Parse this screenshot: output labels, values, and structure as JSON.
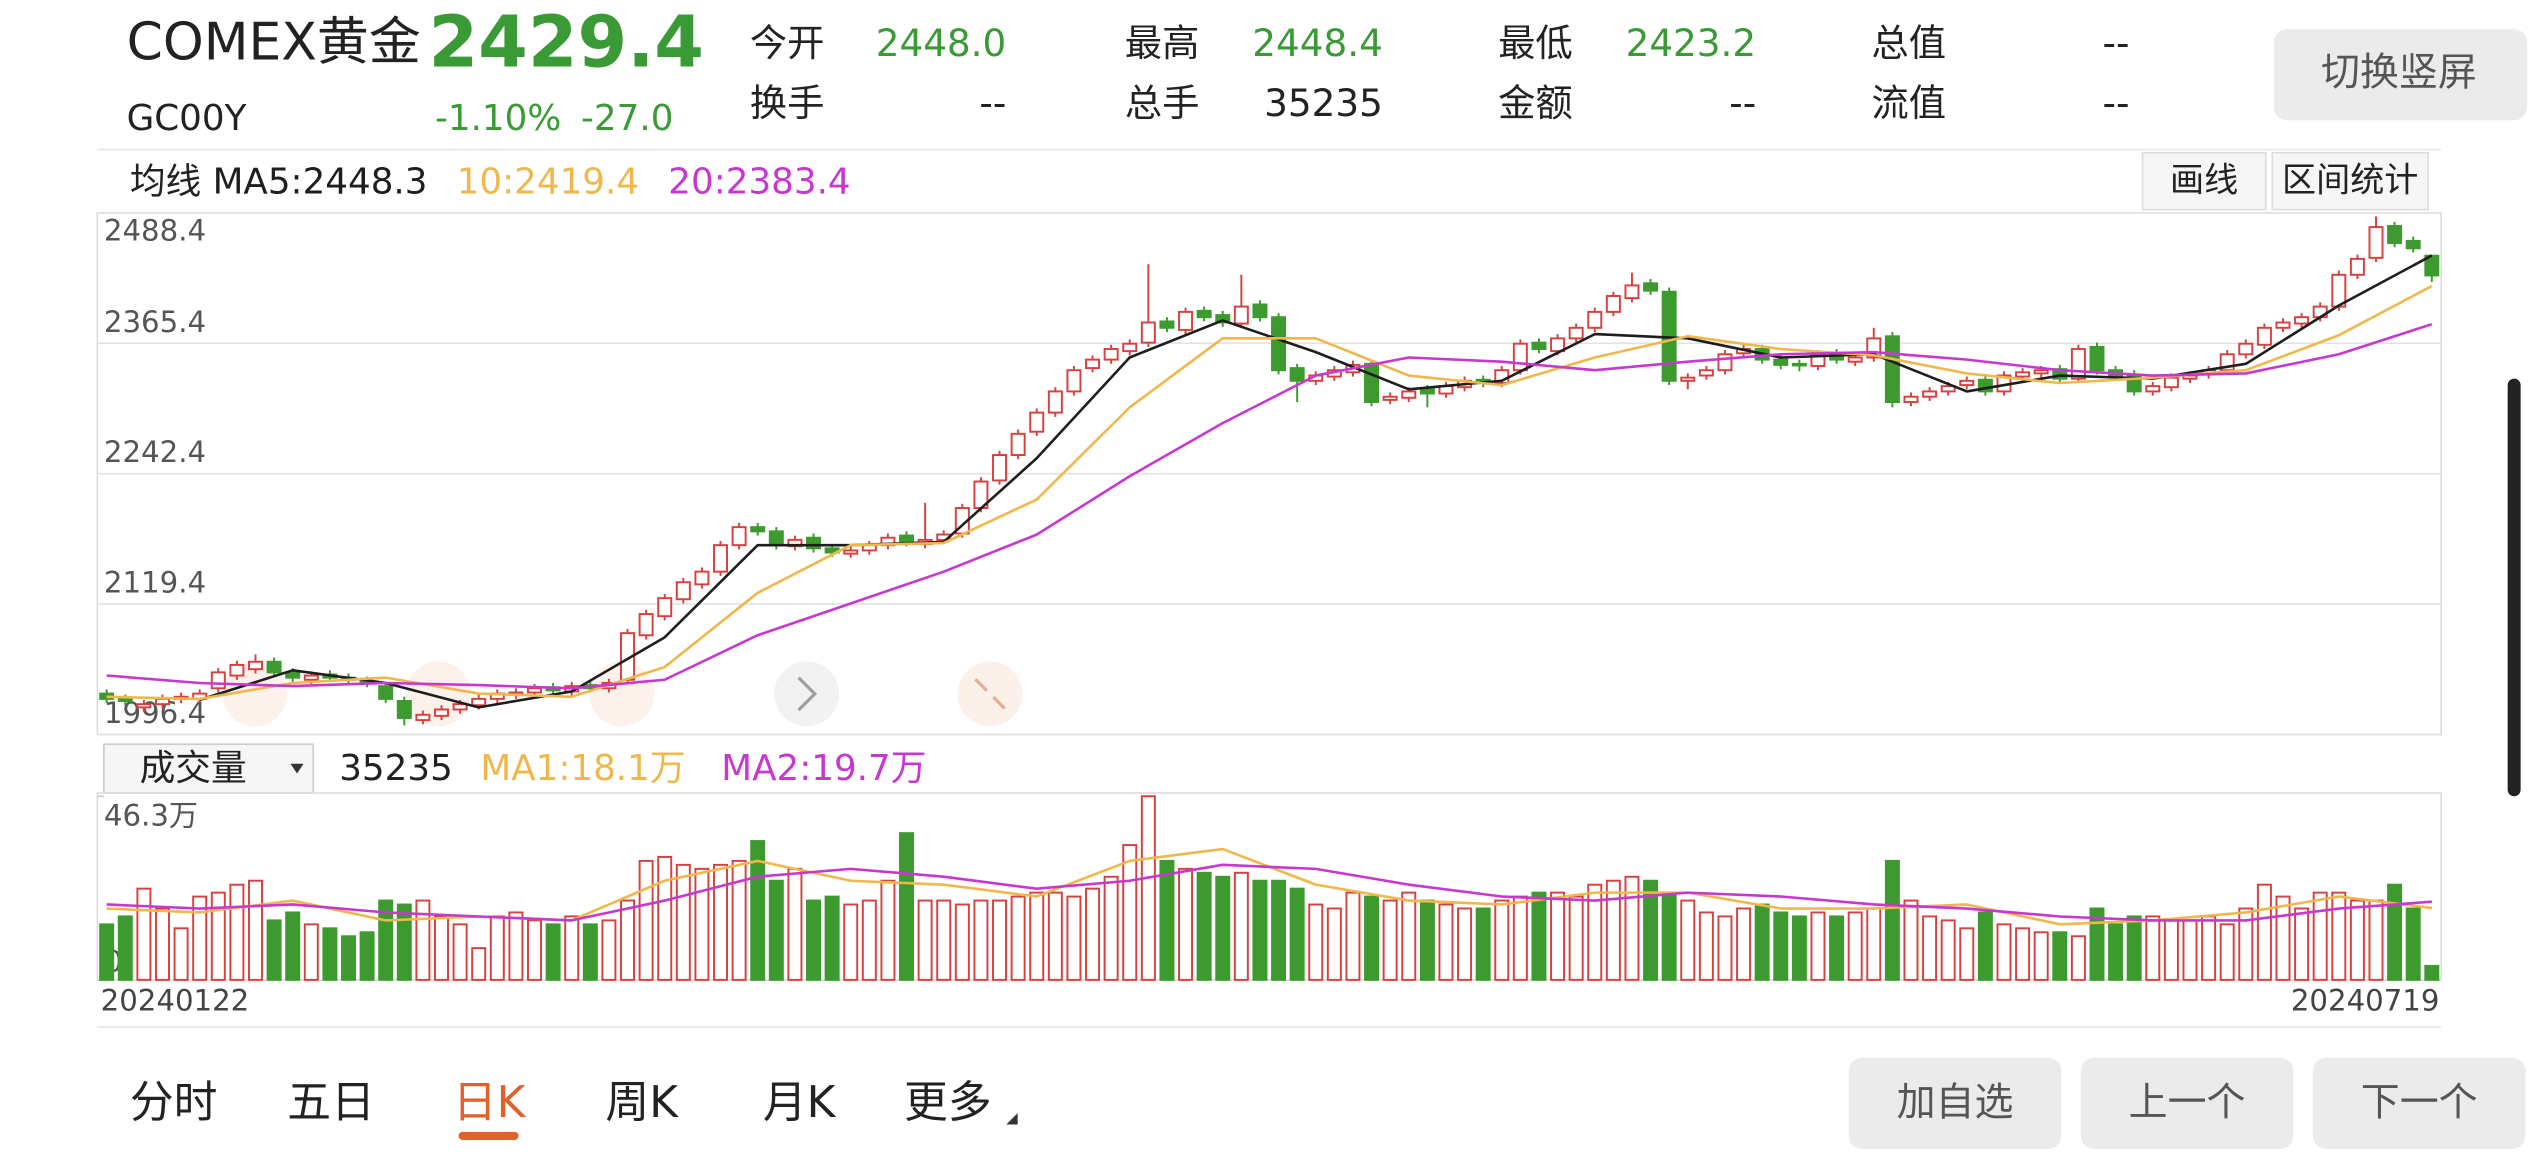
{
  "header": {
    "name": "COMEX黄金",
    "price": "2429.4",
    "code": "GC00Y",
    "change_pct": "-1.10%",
    "change": "-27.0",
    "color": "#3a9a35",
    "stats": [
      {
        "label": "今开",
        "value": "2448.0",
        "color": "#3a9a35"
      },
      {
        "label": "最高",
        "value": "2448.4",
        "color": "#3a9a35"
      },
      {
        "label": "最低",
        "value": "2423.2",
        "color": "#3a9a35"
      },
      {
        "label": "总值",
        "value": "--"
      },
      {
        "label": "换手",
        "value": "--"
      },
      {
        "label": "总手",
        "value": "35235"
      },
      {
        "label": "金额",
        "value": "--"
      },
      {
        "label": "流值",
        "value": "--"
      }
    ]
  },
  "orientation_button": "切换竖屏",
  "chart_data": [
    {
      "type": "candlestick",
      "legend": {
        "title": "均线"
      },
      "tools": [
        "画线",
        "区间统计"
      ],
      "up_color": "#d84040",
      "down_color": "#3c9a2e",
      "ylim": [
        1996.4,
        2488.4
      ],
      "yticks": [
        1996.4,
        2119.4,
        2242.4,
        2365.4,
        2488.4
      ],
      "grid": true,
      "open": [
        2035,
        2030,
        2022,
        2025,
        2030,
        2030,
        2040,
        2052,
        2058,
        2065,
        2055,
        2048,
        2053,
        2050,
        2047,
        2042,
        2028,
        2010,
        2014,
        2020,
        2024,
        2030,
        2034,
        2036,
        2041,
        2037,
        2043,
        2040,
        2048,
        2090,
        2108,
        2124,
        2138,
        2150,
        2175,
        2192,
        2188,
        2174,
        2182,
        2172,
        2167,
        2170,
        2175,
        2184,
        2176,
        2180,
        2186,
        2210,
        2236,
        2260,
        2282,
        2300,
        2320,
        2342,
        2350,
        2358,
        2366,
        2386,
        2378,
        2396,
        2392,
        2384,
        2402,
        2390,
        2342,
        2330,
        2334,
        2338,
        2346,
        2312,
        2314,
        2322,
        2318,
        2324,
        2331,
        2328,
        2340,
        2366,
        2358,
        2370,
        2380,
        2395,
        2408,
        2422,
        2414,
        2330,
        2335,
        2340,
        2356,
        2360,
        2350,
        2346,
        2344,
        2356,
        2348,
        2352,
        2372,
        2310,
        2315,
        2320,
        2326,
        2331,
        2320,
        2334,
        2337,
        2341,
        2332,
        2362,
        2340,
        2336,
        2320,
        2324,
        2332,
        2336,
        2340,
        2355,
        2364,
        2380,
        2384,
        2390,
        2400,
        2430,
        2446,
        2476,
        2462,
        2448
      ],
      "high": [
        2039,
        2034,
        2029,
        2034,
        2036,
        2039,
        2059,
        2066,
        2072,
        2069,
        2059,
        2056,
        2057,
        2054,
        2051,
        2046,
        2032,
        2019,
        2024,
        2029,
        2034,
        2039,
        2040,
        2044,
        2045,
        2046,
        2047,
        2049,
        2096,
        2114,
        2129,
        2144,
        2154,
        2179,
        2196,
        2196,
        2192,
        2184,
        2186,
        2176,
        2174,
        2179,
        2186,
        2188,
        2215,
        2189,
        2214,
        2239,
        2264,
        2284,
        2304,
        2324,
        2344,
        2354,
        2364,
        2369,
        2440,
        2390,
        2399,
        2400,
        2396,
        2430,
        2406,
        2394,
        2346,
        2339,
        2344,
        2349,
        2350,
        2319,
        2324,
        2326,
        2329,
        2334,
        2335,
        2344,
        2369,
        2370,
        2374,
        2384,
        2399,
        2414,
        2432,
        2426,
        2418,
        2337,
        2344,
        2359,
        2364,
        2364,
        2354,
        2350,
        2359,
        2360,
        2356,
        2380,
        2376,
        2319,
        2324,
        2329,
        2334,
        2335,
        2339,
        2342,
        2344,
        2345,
        2364,
        2366,
        2344,
        2340,
        2329,
        2337,
        2339,
        2344,
        2359,
        2369,
        2384,
        2389,
        2394,
        2404,
        2434,
        2449,
        2485,
        2480,
        2466,
        2448.4
      ],
      "low": [
        2026,
        2024,
        2018,
        2021,
        2026,
        2026,
        2036,
        2048,
        2054,
        2051,
        2046,
        2044,
        2046,
        2044,
        2041,
        2026,
        2005,
        2006,
        2010,
        2016,
        2020,
        2026,
        2030,
        2032,
        2034,
        2033,
        2036,
        2036,
        2044,
        2086,
        2104,
        2120,
        2134,
        2146,
        2171,
        2184,
        2171,
        2170,
        2168,
        2164,
        2163,
        2166,
        2171,
        2174,
        2172,
        2176,
        2182,
        2206,
        2232,
        2256,
        2278,
        2296,
        2316,
        2338,
        2346,
        2354,
        2362,
        2376,
        2374,
        2386,
        2381,
        2380,
        2386,
        2336,
        2310,
        2326,
        2330,
        2334,
        2306,
        2308,
        2310,
        2305,
        2314,
        2320,
        2324,
        2324,
        2336,
        2356,
        2354,
        2366,
        2376,
        2391,
        2404,
        2411,
        2326,
        2322,
        2331,
        2336,
        2352,
        2346,
        2341,
        2339,
        2340,
        2346,
        2344,
        2348,
        2305,
        2306,
        2311,
        2316,
        2322,
        2316,
        2316,
        2330,
        2333,
        2328,
        2328,
        2336,
        2331,
        2316,
        2316,
        2320,
        2328,
        2332,
        2336,
        2351,
        2360,
        2376,
        2380,
        2386,
        2396,
        2426,
        2442,
        2456,
        2451,
        2423.2
      ],
      "close": [
        2030,
        2028,
        2025,
        2030,
        2032,
        2035,
        2055,
        2062,
        2065,
        2055,
        2050,
        2052,
        2050,
        2048,
        2045,
        2030,
        2012,
        2015,
        2020,
        2025,
        2030,
        2035,
        2036,
        2040,
        2038,
        2042,
        2040,
        2045,
        2092,
        2110,
        2125,
        2140,
        2150,
        2175,
        2192,
        2188,
        2175,
        2180,
        2172,
        2168,
        2170,
        2175,
        2182,
        2178,
        2180,
        2185,
        2210,
        2235,
        2260,
        2280,
        2300,
        2320,
        2340,
        2350,
        2360,
        2365,
        2385,
        2380,
        2395,
        2390,
        2385,
        2400,
        2390,
        2340,
        2330,
        2335,
        2340,
        2345,
        2310,
        2315,
        2320,
        2318,
        2325,
        2330,
        2328,
        2340,
        2365,
        2360,
        2370,
        2380,
        2395,
        2410,
        2420,
        2415,
        2330,
        2333,
        2340,
        2355,
        2360,
        2350,
        2345,
        2345,
        2355,
        2350,
        2352,
        2370,
        2310,
        2315,
        2320,
        2325,
        2330,
        2320,
        2335,
        2338,
        2340,
        2332,
        2360,
        2340,
        2335,
        2320,
        2325,
        2333,
        2335,
        2340,
        2355,
        2365,
        2380,
        2385,
        2390,
        2400,
        2430,
        2445,
        2475,
        2460,
        2455,
        2429.4
      ],
      "series": [
        {
          "name": "MA5:2448.3",
          "color": "#1e1e1e",
          "x": [
            5,
            10,
            15,
            20,
            25,
            30,
            35,
            40,
            45,
            50,
            55,
            60,
            65,
            70,
            75,
            80,
            85,
            90,
            95,
            100,
            105,
            110,
            115,
            120,
            125
          ],
          "values": [
            2029,
            2057,
            2045,
            2022,
            2037,
            2088,
            2175,
            2175,
            2178,
            2257,
            2352,
            2387,
            2357,
            2322,
            2330,
            2374,
            2370,
            2352,
            2355,
            2320,
            2335,
            2332,
            2346,
            2401,
            2448.3
          ]
        },
        {
          "name": "10:2419.4",
          "color": "#f0b84c",
          "x": [
            0,
            5,
            10,
            15,
            20,
            25,
            30,
            35,
            40,
            45,
            50,
            55,
            60,
            65,
            70,
            75,
            80,
            85,
            90,
            95,
            100,
            105,
            110,
            115,
            120,
            125
          ],
          "values": [
            2032,
            2030,
            2045,
            2050,
            2035,
            2032,
            2060,
            2130,
            2175,
            2177,
            2218,
            2305,
            2370,
            2370,
            2335,
            2326,
            2352,
            2372,
            2360,
            2354,
            2337,
            2328,
            2333,
            2340,
            2373,
            2419.4
          ]
        },
        {
          "name": "20:2383.4",
          "color": "#c638d0",
          "x": [
            0,
            5,
            10,
            15,
            20,
            25,
            30,
            35,
            40,
            45,
            50,
            55,
            60,
            65,
            70,
            75,
            80,
            85,
            90,
            95,
            100,
            105,
            110,
            115,
            120,
            125
          ],
          "values": [
            2052,
            2045,
            2042,
            2045,
            2043,
            2040,
            2048,
            2090,
            2120,
            2150,
            2185,
            2240,
            2290,
            2335,
            2352,
            2348,
            2340,
            2348,
            2355,
            2357,
            2350,
            2340,
            2335,
            2337,
            2355,
            2383.4
          ]
        }
      ]
    },
    {
      "type": "bar",
      "title": "成交量",
      "current": "35235",
      "ylim": [
        0,
        46.3
      ],
      "yticks": [
        0,
        {
          "value": 46.3,
          "label": "46.3万"
        }
      ],
      "x_labels": [
        "20240122",
        "20240719"
      ],
      "values": [
        14,
        16,
        23,
        18,
        13,
        21,
        22,
        24,
        25,
        15,
        17,
        14,
        13,
        11,
        12,
        20,
        19,
        20,
        16,
        14,
        8,
        16,
        17,
        15,
        14,
        16,
        14,
        15,
        20,
        30,
        31,
        29,
        28,
        29,
        30,
        35,
        25,
        28,
        20,
        21,
        19,
        20,
        25,
        37,
        20,
        20,
        19,
        20,
        20,
        21,
        22,
        22,
        21,
        23,
        26,
        34,
        46.3,
        30,
        28,
        27,
        26,
        27,
        25,
        25,
        23,
        19,
        18,
        22,
        21,
        20,
        22,
        20,
        19,
        18,
        18,
        20,
        21,
        22,
        22,
        21,
        24,
        25,
        26,
        25,
        22,
        20,
        17,
        16,
        18,
        19,
        17,
        16,
        17,
        16,
        17,
        18,
        30,
        20,
        16,
        15,
        13,
        17,
        14,
        13,
        12,
        12,
        11,
        18,
        14,
        16,
        16,
        15,
        15,
        16,
        14,
        18,
        24,
        21,
        18,
        22,
        22,
        20,
        20,
        24,
        18,
        3.5235
      ],
      "series": [
        {
          "name": "MA1:18.1万",
          "color": "#f0b84c",
          "x": [
            0,
            5,
            10,
            15,
            20,
            25,
            30,
            35,
            40,
            45,
            50,
            55,
            60,
            65,
            70,
            75,
            80,
            85,
            90,
            95,
            100,
            105,
            110,
            115,
            120,
            125
          ],
          "values": [
            18,
            17,
            20,
            15,
            16,
            15,
            25,
            30,
            25,
            24,
            21,
            30,
            33,
            24,
            20,
            19,
            22,
            22,
            18,
            18,
            19,
            14,
            15,
            17,
            21,
            18.1
          ]
        },
        {
          "name": "MA2:19.7万",
          "color": "#c638d0",
          "x": [
            0,
            5,
            10,
            15,
            20,
            25,
            30,
            35,
            40,
            45,
            50,
            55,
            60,
            65,
            70,
            75,
            80,
            85,
            90,
            95,
            100,
            105,
            110,
            115,
            120,
            125
          ],
          "values": [
            19,
            18,
            19,
            17,
            16,
            15,
            20,
            26,
            28,
            26,
            23,
            25,
            29,
            28,
            24,
            21,
            20,
            22,
            21,
            19,
            18,
            16,
            15,
            15,
            18,
            19.7
          ]
        }
      ]
    }
  ],
  "tabs": [
    "分时",
    "五日",
    "日K",
    "周K",
    "月K",
    "更多"
  ],
  "active_tab": 2,
  "active_color": "#e0622a",
  "buttons": [
    "加自选",
    "上一个",
    "下一个"
  ]
}
